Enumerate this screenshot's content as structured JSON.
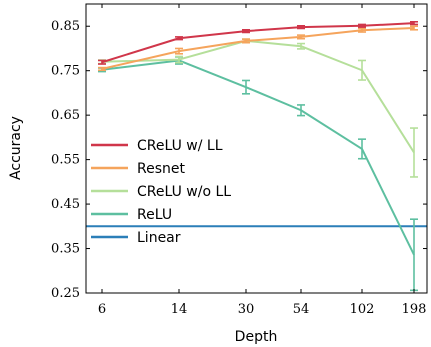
{
  "chart_data": {
    "type": "line",
    "xlabel": "Depth",
    "ylabel": "Accuracy",
    "categories": [
      "6",
      "14",
      "30",
      "54",
      "102",
      "198"
    ],
    "ylim": [
      0.25,
      0.9
    ],
    "yticks": [
      "0.25",
      "0.35",
      "0.45",
      "0.55",
      "0.65",
      "0.75",
      "0.85"
    ],
    "legend_position": "center-left",
    "series": [
      {
        "name": "CReLU w/ LL",
        "color": "#d0364a",
        "values": [
          0.769,
          0.823,
          0.839,
          0.848,
          0.851,
          0.857
        ],
        "errors": [
          0.004,
          0.003,
          0.003,
          0.003,
          0.003,
          0.003
        ]
      },
      {
        "name": "Resnet",
        "color": "#f5a45c",
        "values": [
          0.754,
          0.794,
          0.817,
          0.826,
          0.841,
          0.846
        ],
        "errors": [
          0.003,
          0.006,
          0.004,
          0.004,
          0.004,
          0.004
        ]
      },
      {
        "name": "CReLU w/o LL",
        "color": "#b5df9a",
        "values": [
          0.77,
          0.775,
          0.817,
          0.805,
          0.751,
          0.566
        ],
        "errors": [
          0.004,
          0.007,
          0.004,
          0.006,
          0.022,
          0.055
        ]
      },
      {
        "name": "ReLU",
        "color": "#5dbfa0",
        "values": [
          0.752,
          0.773,
          0.713,
          0.661,
          0.574,
          0.336
        ],
        "errors": [
          0.004,
          0.008,
          0.015,
          0.012,
          0.022,
          0.08
        ]
      },
      {
        "name": "Linear",
        "color": "#2b7fb8",
        "constant": 0.4
      }
    ]
  }
}
